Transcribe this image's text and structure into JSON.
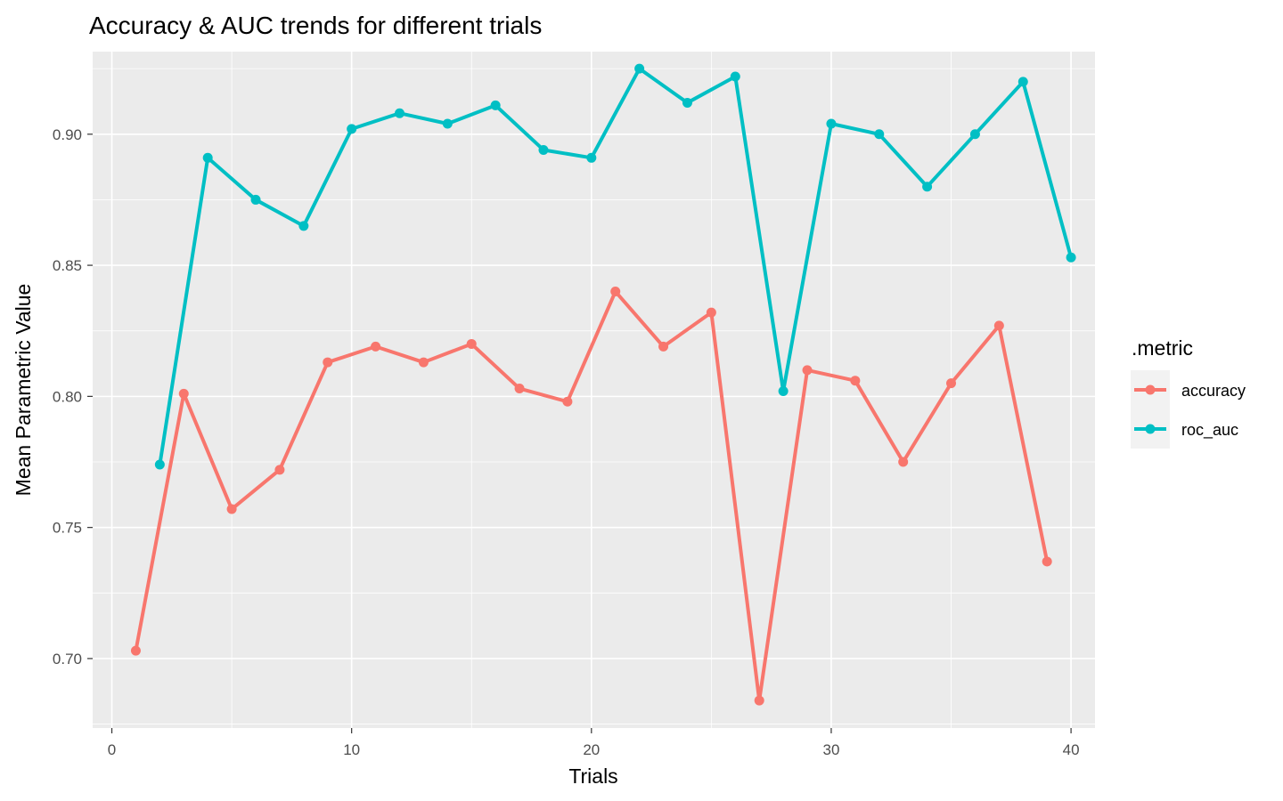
{
  "chart_data": {
    "type": "line",
    "title": "Accuracy & AUC trends for different trials",
    "xlabel": "Trials",
    "ylabel": "Mean Parametric Value",
    "xlim": [
      -0.8,
      41.0
    ],
    "ylim": [
      0.6735,
      0.9315
    ],
    "x_ticks": [
      0,
      10,
      20,
      30,
      40
    ],
    "x_tick_labels": [
      "0",
      "10",
      "20",
      "30",
      "40"
    ],
    "y_ticks": [
      0.7,
      0.75,
      0.8,
      0.85,
      0.9
    ],
    "y_tick_labels": [
      "0.70",
      "0.75",
      "0.80",
      "0.85",
      "0.90"
    ],
    "grid": true,
    "legend": {
      "title": ".metric",
      "position": "right"
    },
    "series": [
      {
        "name": "accuracy",
        "color": "#F8766D",
        "x": [
          1,
          3,
          5,
          7,
          9,
          11,
          13,
          15,
          17,
          19,
          21,
          23,
          25,
          27,
          29,
          31,
          33,
          35,
          37,
          39
        ],
        "y": [
          0.703,
          0.801,
          0.757,
          0.772,
          0.813,
          0.819,
          0.813,
          0.82,
          0.803,
          0.798,
          0.84,
          0.819,
          0.832,
          0.684,
          0.81,
          0.806,
          0.775,
          0.805,
          0.827,
          0.737
        ]
      },
      {
        "name": "roc_auc",
        "color": "#00BFC4",
        "x": [
          2,
          4,
          6,
          8,
          10,
          12,
          14,
          16,
          18,
          20,
          22,
          24,
          26,
          28,
          30,
          32,
          34,
          36,
          38,
          40
        ],
        "y": [
          0.774,
          0.891,
          0.875,
          0.865,
          0.902,
          0.908,
          0.904,
          0.911,
          0.894,
          0.891,
          0.925,
          0.912,
          0.922,
          0.802,
          0.904,
          0.9,
          0.88,
          0.9,
          0.92,
          0.853
        ]
      }
    ]
  }
}
